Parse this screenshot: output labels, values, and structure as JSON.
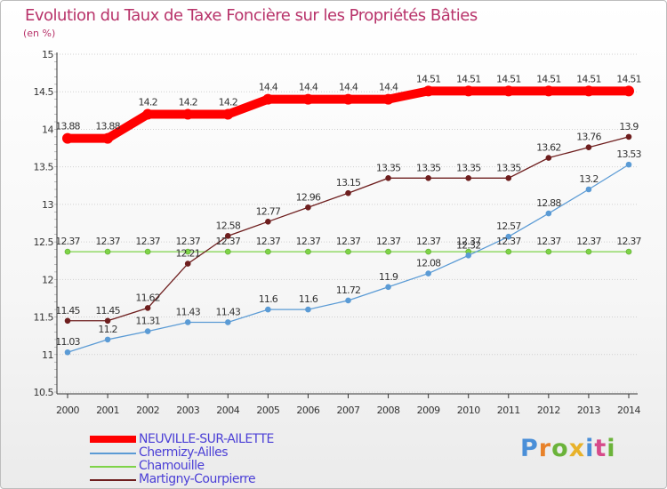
{
  "title": "Evolution du Taux de Taxe Foncière sur les Propriétés Bâties",
  "unit_label": "(en %)",
  "logo": {
    "text": "Proxiti",
    "colors": [
      "#4a8fd8",
      "#e8822a",
      "#6bb33a",
      "#e8b22a",
      "#4a8fd8",
      "#d64a8a",
      "#6bb33a"
    ]
  },
  "chart_data": {
    "type": "line",
    "x": [
      2000,
      2001,
      2002,
      2003,
      2004,
      2005,
      2006,
      2007,
      2008,
      2009,
      2010,
      2011,
      2012,
      2013,
      2014
    ],
    "ylim": [
      10.5,
      15
    ],
    "yticks": [
      10.5,
      11,
      11.5,
      12,
      12.5,
      13,
      13.5,
      14,
      14.5,
      15
    ],
    "xlabel": "",
    "ylabel": "(en %)",
    "series": [
      {
        "name": "NEUVILLE-SUR-AILETTE",
        "color": "#ff0000",
        "values": [
          13.88,
          13.88,
          14.2,
          14.2,
          14.2,
          14.4,
          14.4,
          14.4,
          14.4,
          14.51,
          14.51,
          14.51,
          14.51,
          14.51,
          14.51
        ]
      },
      {
        "name": "Chermizy-Ailles",
        "color": "#5b9bd5",
        "values": [
          11.03,
          11.2,
          11.31,
          11.43,
          11.43,
          11.6,
          11.6,
          11.72,
          11.9,
          12.08,
          12.32,
          12.57,
          12.88,
          13.2,
          13.53
        ]
      },
      {
        "name": "Chamouille",
        "color": "#7ed348",
        "values": [
          12.37,
          12.37,
          12.37,
          12.37,
          12.37,
          12.37,
          12.37,
          12.37,
          12.37,
          12.37,
          12.37,
          12.37,
          12.37,
          12.37,
          12.37
        ]
      },
      {
        "name": "Martigny-Courpierre",
        "color": "#6e1e1e",
        "values": [
          11.45,
          11.45,
          11.62,
          12.21,
          12.58,
          12.77,
          12.96,
          13.15,
          13.35,
          13.35,
          13.35,
          13.35,
          13.62,
          13.76,
          13.9
        ]
      }
    ],
    "labels": {
      "NEUVILLE-SUR-AILETTE": [
        "13.88",
        "13.88",
        "14.2",
        "14.2",
        "14.2",
        "14.4",
        "14.4",
        "14.4",
        "14.4",
        "14.51",
        "14.51",
        "14.51",
        "14.51",
        "14.51",
        "14.51"
      ],
      "Chermizy-Ailles": [
        "11.03",
        "11.2",
        "11.31",
        "11.43",
        "11.43",
        "11.6",
        "11.6",
        "11.72",
        "11.9",
        "12.08",
        "12.32",
        "12.57",
        "12.88",
        "13.2",
        "13.53"
      ],
      "Chamouille": [
        "12.37",
        "12.37",
        "12.37",
        "12.37",
        "12.37",
        "12.37",
        "12.37",
        "12.37",
        "12.37",
        "12.37",
        "12.37",
        "12.37",
        "12.37",
        "12.37",
        "12.37"
      ],
      "Martigny-Courpierre": [
        "11.45",
        "11.45",
        "11.62",
        "12.21",
        "12.58",
        "12.77",
        "12.96",
        "13.15",
        "13.35",
        "13.35",
        "13.35",
        "13.35",
        "13.62",
        "13.76",
        "13.9"
      ]
    },
    "legend": [
      {
        "label": "NEUVILLE-SUR-AILETTE",
        "color": "#ff0000"
      },
      {
        "label": "Chermizy-Ailles",
        "color": "#5b9bd5"
      },
      {
        "label": "Chamouille",
        "color": "#7ed348"
      },
      {
        "label": "Martigny-Courpierre",
        "color": "#6e1e1e"
      }
    ]
  }
}
